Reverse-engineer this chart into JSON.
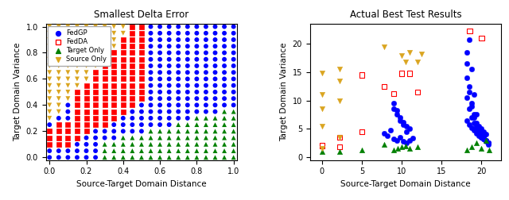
{
  "left_title": "Smallest Delta Error",
  "right_title": "Actual Best Test Results",
  "xlabel": "Source-Target Domain Distance",
  "ylabel": "Target Domain Variance",
  "legend_labels": [
    "FedGP",
    "FedDA",
    "Target Only",
    "Source Only"
  ],
  "colors": [
    "blue",
    "red",
    "green",
    "goldenrod"
  ],
  "markers": [
    "o",
    "s",
    "^",
    "v"
  ],
  "left_xlim": [
    -0.02,
    1.02
  ],
  "left_ylim": [
    -0.02,
    1.02
  ],
  "left_xticks": [
    0.0,
    0.2,
    0.4,
    0.6,
    0.8,
    1.0
  ],
  "left_yticks": [
    0.0,
    0.2,
    0.4,
    0.6,
    0.8,
    1.0
  ],
  "right_xlim": [
    -1.5,
    22.5
  ],
  "right_ylim": [
    -0.5,
    23.5
  ],
  "right_xticks": [
    0,
    5,
    10,
    15,
    20
  ],
  "right_blue_x": [
    7.8,
    8.2,
    8.6,
    9.0,
    9.4,
    9.8,
    10.2,
    10.6,
    11.0,
    9.0,
    9.4,
    9.8,
    10.2,
    10.6,
    11.0,
    11.4,
    9.0,
    9.4,
    9.8,
    10.2,
    10.6,
    18.2,
    18.5,
    18.8,
    19.1,
    19.4,
    19.7,
    20.0,
    20.3,
    20.6,
    20.9,
    18.2,
    18.5,
    18.8,
    19.1,
    19.4,
    19.7,
    20.0,
    20.3,
    20.6,
    20.9,
    18.2,
    18.5,
    18.8,
    19.1,
    19.4,
    19.7,
    20.0,
    20.3,
    20.6,
    20.9,
    18.2,
    18.5,
    18.8,
    19.1,
    19.4,
    19.7,
    20.0,
    20.3,
    20.6,
    20.9,
    18.2,
    18.5,
    18.8,
    19.1,
    19.4,
    19.7,
    20.0,
    20.3,
    20.6
  ],
  "right_blue_y": [
    4.2,
    3.8,
    4.8,
    9.5,
    8.2,
    7.0,
    6.2,
    5.5,
    5.0,
    3.2,
    3.0,
    3.5,
    2.8,
    2.5,
    3.0,
    3.3,
    8.5,
    7.5,
    6.5,
    5.8,
    4.5,
    18.5,
    20.8,
    15.5,
    11.0,
    7.5,
    5.0,
    4.5,
    3.5,
    3.0,
    2.5,
    14.0,
    11.5,
    9.0,
    7.0,
    5.5,
    4.2,
    3.5,
    3.2,
    2.8,
    2.3,
    10.5,
    8.5,
    7.0,
    6.0,
    5.2,
    4.5,
    4.0,
    3.5,
    3.0,
    2.5,
    6.5,
    5.8,
    5.2,
    4.8,
    4.2,
    3.8,
    3.5,
    3.2,
    2.9,
    2.5,
    16.5,
    12.5,
    9.5,
    7.5,
    6.0,
    5.5,
    5.0,
    4.5,
    4.0
  ],
  "right_red_x": [
    0.0,
    2.2,
    2.2,
    5.0,
    5.0,
    7.8,
    9.0,
    10.0,
    11.0,
    12.0,
    18.5,
    20.0
  ],
  "right_red_y": [
    2.0,
    3.5,
    1.8,
    14.5,
    4.5,
    12.5,
    11.2,
    14.8,
    14.8,
    11.5,
    22.3,
    21.0
  ],
  "right_green_x": [
    0.0,
    2.2,
    5.0,
    7.8,
    9.0,
    9.5,
    10.0,
    10.5,
    11.0,
    12.0,
    18.2,
    18.8,
    19.4,
    20.0,
    20.6,
    21.0
  ],
  "right_green_y": [
    1.0,
    1.0,
    1.2,
    2.2,
    1.2,
    1.5,
    1.8,
    2.0,
    1.5,
    1.8,
    1.2,
    1.8,
    2.5,
    1.5,
    3.0,
    1.2
  ],
  "right_yellow_x": [
    0.0,
    0.0,
    0.0,
    0.0,
    0.0,
    2.2,
    2.2,
    2.2,
    2.2,
    7.8,
    10.0,
    10.5,
    11.0,
    12.0,
    12.5
  ],
  "right_yellow_y": [
    14.8,
    11.0,
    8.5,
    5.5,
    1.5,
    15.5,
    13.5,
    10.0,
    3.5,
    19.5,
    18.0,
    16.8,
    18.5,
    16.8,
    18.2
  ]
}
